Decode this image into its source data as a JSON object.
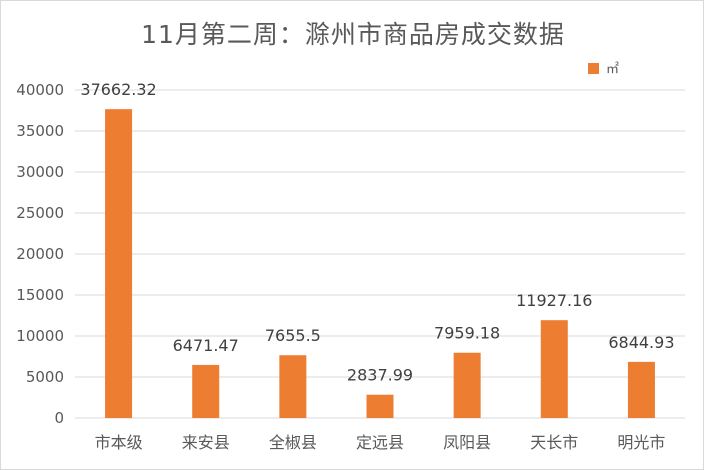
{
  "chart_data": {
    "type": "bar",
    "title": "11月第二周：滁州市商品房成交数据",
    "categories": [
      "市本级",
      "来安县",
      "全椒县",
      "定远县",
      "凤阳县",
      "天长市",
      "明光市"
    ],
    "series": [
      {
        "name": "㎡",
        "values": [
          37662.32,
          6471.47,
          7655.5,
          2837.99,
          7959.18,
          11927.16,
          6844.93
        ],
        "labels": [
          "37662.32",
          "6471.47",
          "7655.5",
          "2837.99",
          "7959.18",
          "11927.16",
          "6844.93"
        ]
      }
    ],
    "ylim": [
      0,
      40000
    ],
    "yticks": [
      0,
      5000,
      10000,
      15000,
      20000,
      25000,
      30000,
      35000,
      40000
    ],
    "grid": true,
    "legend_position": "top-right",
    "bar_color": "#ed7d31",
    "grid_color": "#d9d9d9",
    "xlabel": "",
    "ylabel": ""
  }
}
